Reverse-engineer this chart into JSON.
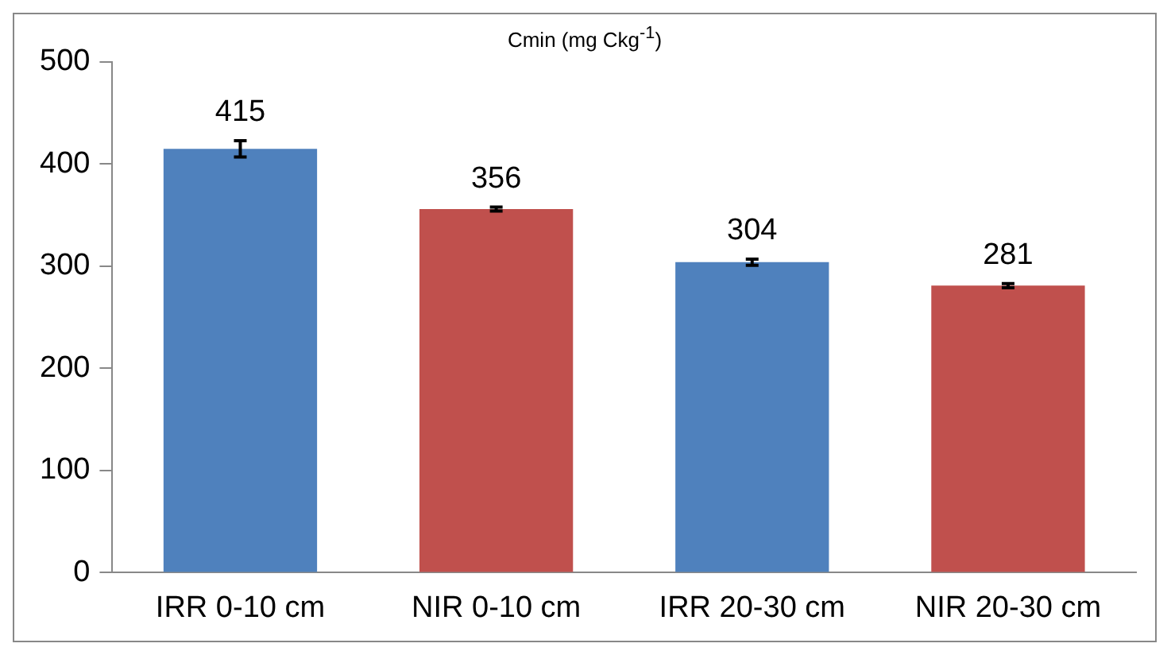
{
  "chart_data": {
    "type": "bar",
    "title": "Cmin (mg Ckg$^{-1}$)",
    "categories": [
      "IRR 0-10 cm",
      "NIR 0-10 cm",
      "IRR 20-30 cm",
      "NIR 20-30 cm"
    ],
    "values": [
      415,
      356,
      304,
      281
    ],
    "colors": [
      "#4f81bd",
      "#c0504d",
      "#4f81bd",
      "#c0504d"
    ],
    "errors": [
      8,
      2,
      3,
      2
    ],
    "data_labels": true,
    "ylim": [
      0,
      500
    ],
    "yticks": [
      0,
      100,
      200,
      300,
      400,
      500
    ],
    "grid": false,
    "legend": false
  }
}
